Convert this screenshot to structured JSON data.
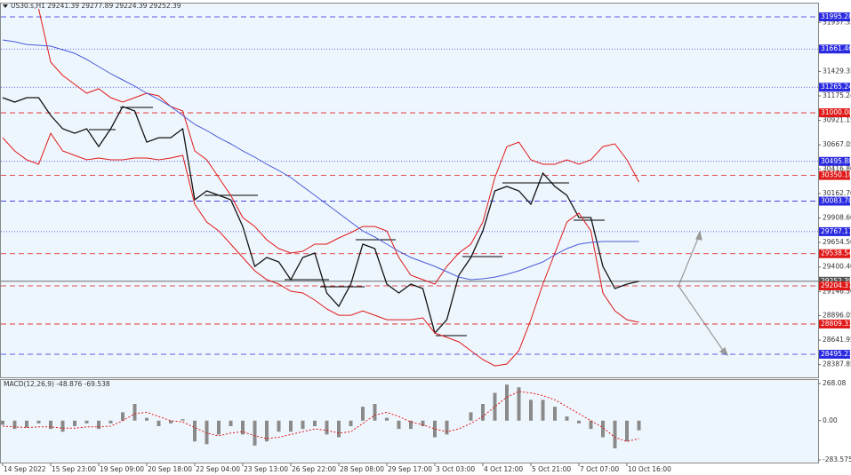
{
  "chart_data": {
    "type": "line",
    "title": "US30.s,H1 29241.39 29277.89 29224.39 29252.39",
    "categories": [
      "14 Sep 2022",
      null,
      null,
      null,
      "15 Sep 23:00",
      null,
      null,
      null,
      "19 Sep 09:00",
      null,
      null,
      null,
      "20 Sep 18:00",
      null,
      null,
      null,
      "22 Sep 04:00",
      null,
      null,
      null,
      "23 Sep 13:00",
      null,
      null,
      null,
      "26 Sep 22:00",
      null,
      null,
      null,
      "28 Sep 08:00",
      null,
      null,
      null,
      "29 Sep 17:00",
      null,
      null,
      null,
      "3 Oct 03:00",
      null,
      null,
      null,
      "4 Oct 12:00",
      null,
      null,
      null,
      "5 Oct 21:00",
      null,
      null,
      null,
      "7 Oct 07:00",
      null,
      null,
      null,
      "10 Oct 16:00",
      null
    ],
    "series": [
      {
        "color": "#111111",
        "values": [
          31157,
          31111,
          31157,
          31157,
          30973,
          30835,
          30788,
          30835,
          30650,
          30835,
          31065,
          31019,
          30696,
          30742,
          30742,
          30835,
          30098,
          30190,
          30144,
          30098,
          29821,
          29407,
          29499,
          29453,
          29269,
          29499,
          29545,
          29131,
          28993,
          29223,
          29637,
          29591,
          29223,
          29131,
          29223,
          29177,
          28716,
          28854,
          29315,
          29499,
          29775,
          30190,
          30236,
          30190,
          30052,
          30374,
          30236,
          30144,
          29914,
          29914,
          29407,
          29177,
          29223,
          29252
        ]
      },
      {
        "color": "#e01818",
        "values": [
          null,
          null,
          null,
          32078,
          31525,
          31387,
          31295,
          31203,
          31249,
          31157,
          31111,
          31157,
          31203,
          31175,
          31065,
          31019,
          30604,
          30512,
          30328,
          30144,
          29914,
          29821,
          29683,
          29591,
          29545,
          29564,
          29637,
          29637,
          29702,
          29757,
          29821,
          29821,
          29775,
          29499,
          29315,
          29269,
          29223,
          29407,
          29545,
          29637,
          29867,
          30328,
          30650,
          30696,
          30512,
          30466,
          30466,
          30512,
          30466,
          30512,
          30650,
          30678,
          30512,
          30282
        ]
      },
      {
        "color": "#e01818",
        "values": [
          30742,
          30604,
          30512,
          30466,
          30788,
          30604,
          30558,
          30512,
          30531,
          30512,
          30512,
          30531,
          30531,
          30512,
          30531,
          30558,
          30052,
          29867,
          29775,
          29637,
          29499,
          29361,
          29269,
          29223,
          29149,
          29131,
          29057,
          28965,
          28900,
          28900,
          28946,
          28900,
          28854,
          28854,
          28854,
          28873,
          28716,
          28670,
          28624,
          28532,
          28440,
          28375,
          28394,
          28532,
          28854,
          29223,
          29545,
          29867,
          29960,
          29775,
          29131,
          28946,
          28854,
          28827
        ]
      },
      {
        "color": "#4a5ad8",
        "values": [
          31756,
          31737,
          31709,
          31700,
          31691,
          31654,
          31617,
          31553,
          31479,
          31406,
          31341,
          31277,
          31203,
          31138,
          31065,
          30973,
          30880,
          30816,
          30742,
          30678,
          30604,
          30540,
          30466,
          30402,
          30328,
          30236,
          30144,
          30052,
          29960,
          29867,
          29775,
          29711,
          29637,
          29564,
          29499,
          29453,
          29407,
          29352,
          29296,
          29269,
          29278,
          29296,
          29324,
          29361,
          29407,
          29453,
          29527,
          29591,
          29637,
          29656,
          29665,
          29665,
          29665,
          29665
        ]
      }
    ],
    "ylim": [
      28256,
      32124
    ],
    "yticks": [
      31937.33,
      31429.35,
      31175.24,
      30921.15,
      30667.05,
      {
        "value": 30416.8,
        "label": "30416.80"
      },
      {
        "value": 30162.7,
        "label": "30162.70"
      },
      {
        "value": 29908.6,
        "label": "29908.60"
      },
      {
        "value": 29654.5,
        "label": "29654.50"
      },
      {
        "value": 29400.4,
        "label": "29400.40"
      },
      {
        "value": 29146.3,
        "label": "29146.30"
      },
      28896.05,
      28641.95,
      28387.85
    ],
    "levels": [
      {
        "value": 31995.28,
        "label": "31995.28",
        "color": "#2a2ae0",
        "style": "dashed"
      },
      {
        "value": 31661.46,
        "label": "31661.46",
        "color": "#2a2ae0",
        "style": "dotted"
      },
      {
        "value": 31265.24,
        "label": "31265.24",
        "color": "#2a2ae0",
        "style": "dotted"
      },
      {
        "value": 31000,
        "label": "31000.00",
        "color": "#e01818",
        "style": "dashed"
      },
      {
        "value": 30495.88,
        "label": "30495.88",
        "color": "#2a2ae0",
        "style": "dotted"
      },
      {
        "value": 30350.18,
        "label": "30350.18",
        "color": "#e01818",
        "style": "dashed"
      },
      {
        "value": 30083.7,
        "label": "30083.70",
        "color": "#2a2ae0",
        "style": "dashed"
      },
      {
        "value": 29767.17,
        "label": "29767.17",
        "color": "#2a2ae0",
        "style": "dotted"
      },
      {
        "value": 29538.54,
        "label": "29538.54",
        "color": "#e01818",
        "style": "dashed"
      },
      {
        "value": 29252.39,
        "label": "29252.39",
        "color": "#555555",
        "style": "solid"
      },
      {
        "value": 29204.37,
        "label": "29204.37",
        "color": "#e01818",
        "style": "dashed"
      },
      {
        "value": 28809.33,
        "label": "28809.33",
        "color": "#e01818",
        "style": "dashed"
      },
      {
        "value": 28495.23,
        "label": "28495.23",
        "color": "#2a2ae0",
        "style": "dashed"
      }
    ],
    "macd": {
      "title": "MACD(12,26,9) -48.876 -69.538",
      "ylim": [
        -309,
        293
      ],
      "yticks": [
        268.08,
        {
          "value": 0,
          "label": "0.00"
        },
        -283.575
      ],
      "series": [
        {
          "kind": "bar",
          "color": "#8a8a8a",
          "values": [
            -30,
            -60,
            -50,
            -20,
            -60,
            -80,
            -40,
            -20,
            -60,
            -20,
            60,
            120,
            20,
            -40,
            -20,
            10,
            -150,
            -170,
            -100,
            -40,
            -100,
            -180,
            -150,
            -80,
            -80,
            -60,
            -40,
            -100,
            -120,
            -40,
            100,
            120,
            20,
            -60,
            -60,
            -40,
            -120,
            -100,
            0,
            60,
            120,
            200,
            260,
            240,
            150,
            150,
            100,
            30,
            -20,
            -60,
            -120,
            -200,
            -150,
            -70
          ]
        },
        {
          "kind": "line",
          "color": "#e01818",
          "values": [
            -40,
            -45,
            -50,
            -45,
            -45,
            -55,
            -55,
            -45,
            -45,
            -40,
            0,
            50,
            60,
            30,
            0,
            -10,
            -50,
            -90,
            -110,
            -90,
            -80,
            -110,
            -130,
            -120,
            -100,
            -80,
            -60,
            -70,
            -90,
            -80,
            -20,
            40,
            60,
            30,
            -10,
            -30,
            -60,
            -80,
            -60,
            -20,
            30,
            100,
            170,
            210,
            200,
            180,
            150,
            100,
            50,
            0,
            -50,
            -120,
            -150,
            -130
          ]
        }
      ]
    }
  }
}
